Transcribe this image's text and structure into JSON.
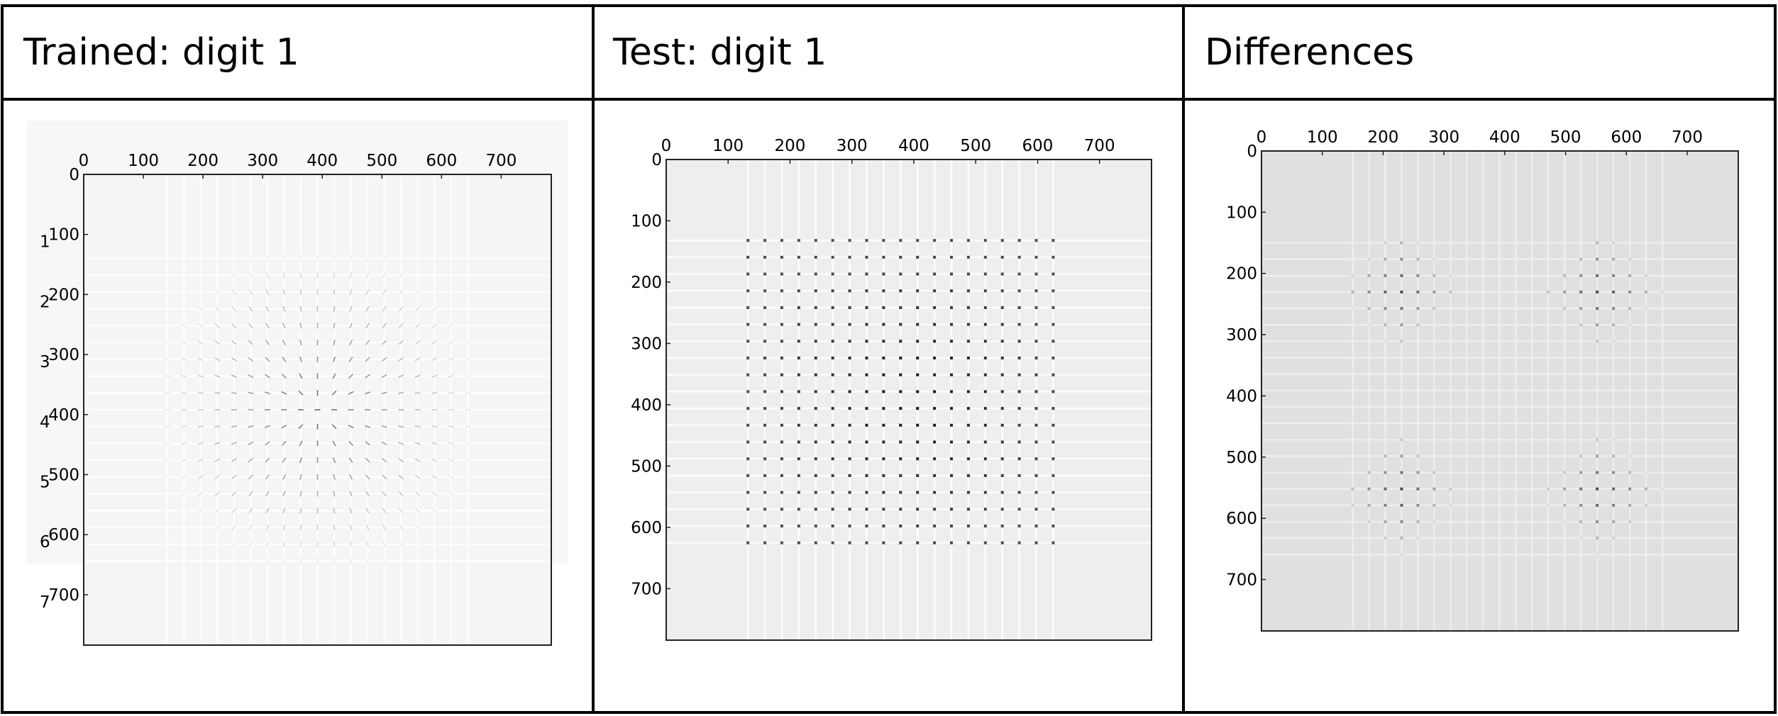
{
  "table": {
    "headers": [
      "Trained: digit 1",
      "Test: digit 1",
      "Differences"
    ]
  },
  "chart_data": [
    {
      "type": "heatmap",
      "title": "Trained: digit 1",
      "xticks": [
        0,
        100,
        200,
        300,
        400,
        500,
        600,
        700
      ],
      "yticks": [
        0,
        100,
        200,
        300,
        400,
        500,
        600,
        700
      ],
      "extra_ytick_labels": [
        "1",
        "2",
        "3",
        "4",
        "5",
        "6",
        "7"
      ],
      "xlim": [
        0,
        784
      ],
      "ylim": [
        0,
        784
      ],
      "y_inverted": true,
      "x_ticks_on_top": true,
      "background": "#f5f5f5",
      "grid_first": 140,
      "grid_last": 644,
      "grid_step": 28,
      "stripe_color": "#ffffff",
      "mark": "dash",
      "mark_color": "#555555",
      "max_intensity": 0.9
    },
    {
      "type": "heatmap",
      "title": "Test: digit 1",
      "xticks": [
        0,
        100,
        200,
        300,
        400,
        500,
        600,
        700
      ],
      "yticks": [
        0,
        100,
        200,
        300,
        400,
        500,
        600,
        700
      ],
      "xlim": [
        0,
        784
      ],
      "ylim": [
        0,
        784
      ],
      "y_inverted": true,
      "x_ticks_on_top": true,
      "background": "#eeeeee",
      "grid_first": 132,
      "grid_last": 652,
      "grid_step": 27.4,
      "stripe_color": "#ffffff",
      "mark": "dot",
      "mark_color": "#111111",
      "max_intensity": 1.0
    },
    {
      "type": "heatmap",
      "title": "Differences",
      "xticks": [
        0,
        100,
        200,
        300,
        400,
        500,
        600,
        700
      ],
      "yticks": [
        0,
        100,
        200,
        300,
        400,
        500,
        600,
        700
      ],
      "xlim": [
        0,
        784
      ],
      "ylim": [
        0,
        784
      ],
      "y_inverted": true,
      "x_ticks_on_top": true,
      "background": "#e0e0e0",
      "grid_first": 150,
      "grid_last": 660,
      "grid_step": 26.8,
      "stripe_color": "#f0f0f0",
      "mark": "dot",
      "mark_color": "#111111",
      "max_intensity": 0.8
    }
  ]
}
